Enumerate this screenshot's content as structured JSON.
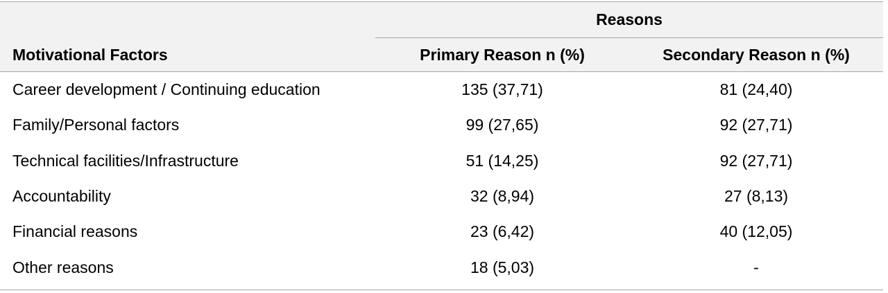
{
  "header": {
    "group_label": "Reasons",
    "factor_label": "Motivational Factors",
    "primary_label": "Primary Reason n (%)",
    "secondary_label": "Secondary Reason n (%)"
  },
  "rows": [
    {
      "factor": "Career development / Continuing education",
      "primary": "135 (37,71)",
      "secondary": "81 (24,40)"
    },
    {
      "factor": "Family/Personal factors",
      "primary": "99 (27,65)",
      "secondary": "92 (27,71)"
    },
    {
      "factor": "Technical facilities/Infrastructure",
      "primary": "51 (14,25)",
      "secondary": "92 (27,71)"
    },
    {
      "factor": "Accountability",
      "primary": "32 (8,94)",
      "secondary": "27 (8,13)"
    },
    {
      "factor": "Financial reasons",
      "primary": "23 (6,42)",
      "secondary": "40 (12,05)"
    },
    {
      "factor": "Other reasons",
      "primary": "18 (5,03)",
      "secondary": "-"
    }
  ]
}
